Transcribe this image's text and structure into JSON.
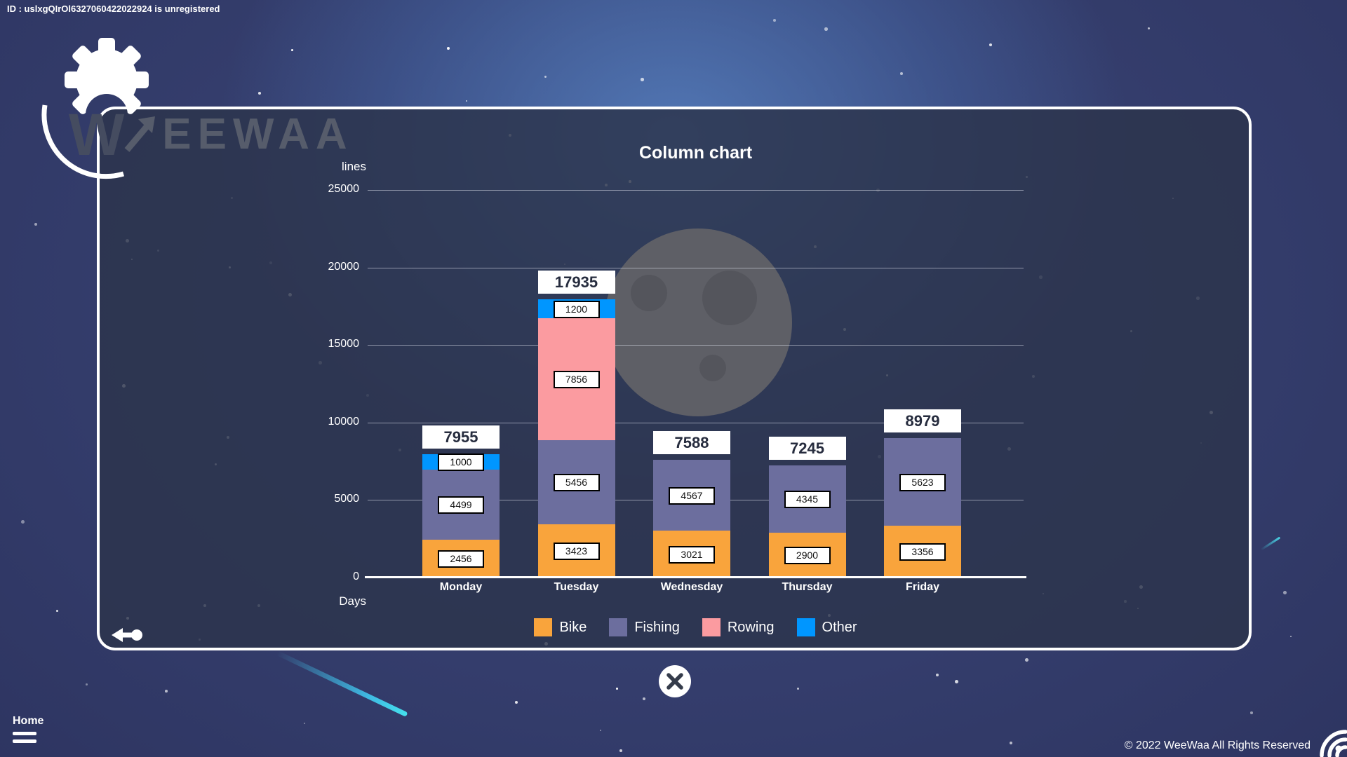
{
  "window": {
    "id_text": "ID : uslxgQIrOl6327060422022924 is unregistered",
    "home_label": "Home",
    "copyright": "© 2022 WeeWaa All Rights Reserved",
    "brand_w": "W",
    "brand_rest": "EEWAA"
  },
  "icons": {
    "gear": "gear-icon",
    "back": "back-arrow-icon",
    "close": "close-icon",
    "menu": "menu-lines-icon",
    "signal": "signal-arcs-icon"
  },
  "chart_data": {
    "type": "bar",
    "stacked": true,
    "title": "Column chart",
    "ylabel": "lines",
    "xlabel": "Days",
    "categories": [
      "Monday",
      "Tuesday",
      "Wednesday",
      "Thursday",
      "Friday"
    ],
    "series": [
      {
        "name": "Bike",
        "color": "#F9A43C",
        "values": [
          2456,
          3423,
          3021,
          2900,
          3356
        ]
      },
      {
        "name": "Fishing",
        "color": "#6C6E9E",
        "values": [
          4499,
          5456,
          4567,
          4345,
          5623
        ]
      },
      {
        "name": "Rowing",
        "color": "#FB9BA0",
        "values": [
          0,
          7856,
          0,
          0,
          0
        ]
      },
      {
        "name": "Other",
        "color": "#0096FF",
        "values": [
          1000,
          1200,
          0,
          0,
          0
        ]
      }
    ],
    "totals": [
      7955,
      17935,
      7588,
      7245,
      8979
    ],
    "ylim": [
      0,
      25000
    ],
    "ytick_step": 5000,
    "grid": true,
    "legend_position": "bottom"
  }
}
